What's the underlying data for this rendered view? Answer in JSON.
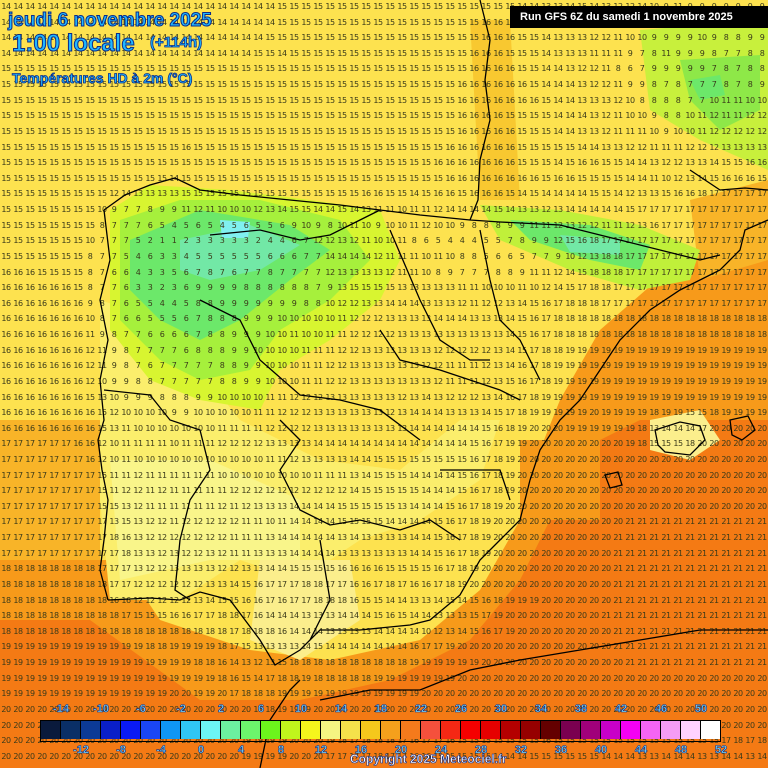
{
  "header": {
    "date": "jeudi 6 novembre 2025",
    "time": "1:00 locale",
    "lead": "(+114h)",
    "variable": "Températures HD à 2m (°C)",
    "run": "Run GFS 6Z du samedi 1 novembre 2025"
  },
  "footer": {
    "copyright": "Copyright 2025 Meteociel.fr"
  },
  "legend": {
    "top_labels": [
      "-14",
      "-10",
      "-6",
      "-2",
      "2",
      "6",
      "10",
      "14",
      "18",
      "22",
      "26",
      "30",
      "34",
      "38",
      "42",
      "46",
      "50"
    ],
    "bottom_labels": [
      "-12",
      "-8",
      "-4",
      "0",
      "4",
      "8",
      "12",
      "16",
      "20",
      "24",
      "28",
      "32",
      "36",
      "40",
      "44",
      "48",
      "52"
    ],
    "colors": [
      "#0a1a3c",
      "#0a2f66",
      "#0c3a96",
      "#0a1fc8",
      "#0a1af5",
      "#1a46f5",
      "#0f96f5",
      "#30c6f5",
      "#6cf5f5",
      "#6cf0a0",
      "#6cf56c",
      "#6cf51c",
      "#c0f51c",
      "#f5f51c",
      "#f5f582",
      "#f5e14b",
      "#f5c81c",
      "#f5a01c",
      "#f57a1c",
      "#f5503c",
      "#f52814",
      "#f50000",
      "#e60000",
      "#b40000",
      "#960000",
      "#640000",
      "#7a0050",
      "#a0007a",
      "#c800c8",
      "#f500f5",
      "#f564f5",
      "#f59cf5",
      "#ffd2ff",
      "#ffffff"
    ]
  },
  "map": {
    "units": "°C",
    "grid_cols": 64,
    "grid_rows": 49,
    "rows": [
      "14 14 14 14 14 14 14 14 14 14 14 14 14 14 14 14 14 14 14 14 14 14 14 15 15 15 15 15 15 15 15 15 15 15 15 15 15 15 15 15 15 15 15 14 14 13 13 14 15 14 13 12 12 14 10 9 11 9 9 9 9 9 9 9",
      "14 14 14 14 14 14 14 14 14 14 14 14 14 14 14 14 14 14 14 14 14 14 14 15 15 15 15 15 15 15 15 15 15 15 15 15 15 15 15 15 16 16 15 15 14 13 12 13 12 11 10 10 10 12 11 11 12 9 9 9 10 9 9 9",
      "14 14 14 14 14 14 14 14 14 14 14 14 14 14 14 14 14 14 14 14 14 14 15 15 15 15 15 15 15 15 15 15 15 15 15 15 15 15 15 15 16 16 16 15 15 14 13 13 13 12 12 11 10 10 9 9 9 9 10 9 8 8 9 9",
      "14 14 14 14 14 14 14 14 14 14 14 14 14 14 14 14 14 14 14 14 14 15 15 14 15 15 15 15 15 15 15 15 15 15 15 15 15 15 15 16 16 16 15 15 15 14 13 13 13 11 11 11 9 7 8 11 9 9 9 8 7 7 8 8",
      "15 15 15 15 15 15 15 15 15 15 15 15 15 15 15 15 15 15 15 15 15 15 15 15 15 15 15 15 15 15 15 15 15 15 15 15 15 15 15 16 16 16 16 15 15 14 14 13 12 12 11 8 6 7 9 9 9 9 9 7 8 7 8 8",
      "15 15 15 15 15 15 15 15 15 15 15 15 15 15 15 15 15 15 15 15 15 15 15 15 15 15 15 15 15 15 15 15 15 15 15 15 15 15 16 16 16 16 16 16 15 14 14 14 13 12 12 11 9 9 8 7 8 7 7 7 8 7 8 9",
      "15 15 15 15 15 15 15 15 15 15 15 15 15 15 15 15 15 15 15 15 15 15 15 15 15 15 15 15 15 15 15 15 15 15 15 15 15 15 16 16 16 16 16 16 16 15 14 14 13 13 13 12 10 8 8 8 8 7 7 10 11 11 10 10",
      "15 15 15 15 15 15 15 15 15 15 15 15 15 15 15 15 15 15 15 15 15 15 15 15 15 15 15 15 15 15 15 15 15 15 15 15 15 15 16 16 16 16 15 15 15 15 14 14 14 13 12 11 10 10 9 8 8 10 11 12 11 11 12 12",
      "15 15 15 15 15 15 15 15 15 15 15 15 15 15 15 15 15 15 15 15 15 15 15 15 15 15 15 15 15 15 15 15 15 15 15 15 15 15 16 16 16 16 16 15 15 15 14 14 13 13 12 11 11 11 10 9 10 10 11 12 12 12 12 12",
      "15 15 15 15 15 15 15 15 15 15 15 15 15 15 15 16 15 15 15 15 15 15 15 15 15 15 15 15 15 15 15 15 15 15 15 15 15 16 16 16 16 16 16 15 15 15 15 15 14 14 13 13 12 12 11 11 11 12 12 12 13 13 13 13",
      "15 15 15 15 15 15 15 15 15 15 15 15 15 15 15 15 15 15 15 15 15 15 15 15 15 15 15 15 15 15 15 15 15 15 15 15 16 16 16 16 16 16 16 15 15 15 14 15 16 16 15 15 14 14 13 12 12 13 13 14 15 15 16 16",
      "15 15 15 15 15 15 15 15 15 15 15 15 15 15 14 15 15 15 15 15 15 15 15 15 15 15 15 15 15 15 15 15 15 15 15 15 15 16 16 16 16 16 16 16 16 15 16 16 15 15 15 15 14 14 11 10 12 13 14 15 16 16 16 15",
      "15 15 15 15 15 15 15 15 15 12 14 13 13 13 13 15 15 15 15 15 15 15 15 15 15 15 15 15 15 15 16 16 15 15 14 15 16 16 15 16 16 16 15 14 15 14 14 14 14 15 15 14 12 13 13 15 16 16 18 17 17 17 17 17",
      "15 15 15 15 15 15 15 15 10 9 7 7 8 9 9 11 12 11 10 10 10 12 13 14 15 15 14 14 15 14 13 11 11 10 11 11 12 14 14 14 14 15 14 13 13 12 13 14 14 14 14 14 15 17 17 17 17 17 17 17 17 17 17 17",
      "15 15 15 15 15 15 15 15 8 7 7 7 6 5 4 5 6 5 4 5 6 5 5 6 9 10 9 8 10 11 10 9 10 10 11 12 10 10 9 8 8 8 9 9 11 11 12 13 12 12 11 11 12 13 16 17 17 17 17 17 17 17 17 17",
      "15 15 15 15 15 15 15 10 7 7 7 5 2 1 1 2 3 3 3 3 3 2 4 4 6 7 12 12 13 12 11 10 10 11 8 6 5 4 4 4 5 5 7 8 9 9 12 15 16 18 17 17 17 17 17 17 17 17 17 17 17 17 17 17",
      "15 15 15 15 15 15 15 8 7 7 5 4 6 3 3 4 5 5 5 5 5 5 6 6 6 7 7 14 14 14 14 12 11 11 11 10 11 10 8 8 5 6 6 5 7 7 9 10 12 13 18 18 17 17 17 17 17 17 17 17 17 17 17 17",
      "16 16 16 15 15 15 15 8 7 6 6 4 3 3 5 6 7 8 7 6 7 7 8 7 7 7 7 12 13 13 13 13 12 11 11 10 8 9 7 7 7 8 8 9 11 11 12 14 15 18 18 18 17 17 17 17 17 17 17 17 17 17 17 17",
      "16 16 16 16 16 16 15 8 7 7 6 3 3 2 3 6 9 9 9 9 8 8 8 8 8 8 7 9 13 15 15 15 15 13 13 13 13 13 11 11 10 10 10 11 10 12 14 15 17 18 18 17 17 17 17 17 17 17 17 17 17 17 17 17",
      "16 16 16 16 16 16 16 9 8 7 6 5 5 4 4 5 8 8 9 9 9 9 9 9 9 8 8 10 12 12 13 13 14 14 14 13 13 13 12 11 12 12 13 14 15 16 17 18 18 18 17 17 17 17 17 17 17 17 17 17 17 17 17 17",
      "16 16 16 16 16 16 16 10 8 7 6 6 5 5 5 6 7 8 8 8 9 9 9 10 10 10 10 10 11 12 12 12 13 13 13 13 14 14 14 13 13 13 14 15 16 17 18 18 18 18 18 18 18 18 18 18 18 18 18 18 18 18 18 18",
      "16 16 16 16 16 16 16 11 9 8 7 7 6 6 6 6 7 8 8 9 9 9 10 10 11 10 10 11 11 12 12 12 12 13 13 13 13 13 13 13 13 13 14 15 16 17 18 18 18 18 18 18 18 18 18 18 18 18 18 18 18 18 18 18",
      "16 16 16 16 16 16 16 12 11 9 8 7 7 7 7 6 8 8 8 9 9 10 10 10 10 11 11 11 12 12 13 13 13 13 13 13 12 12 12 12 12 13 14 15 17 18 18 19 19 19 19 19 19 19 19 19 19 19 19 19 19 19 19 19",
      "16 16 16 16 16 16 16 12 11 9 8 7 6 7 7 7 7 7 8 8 9 9 10 10 10 11 11 12 12 13 13 13 13 13 13 12 12 11 11 11 12 13 14 16 17 18 19 19 19 19 19 19 19 19 19 19 19 19 19 19 19 19 19 19",
      "16 16 16 16 16 16 16 12 10 9 9 8 8 7 7 7 7 7 8 8 9 9 10 10 10 11 11 12 12 13 13 13 13 13 13 13 12 11 11 11 12 13 15 16 17 18 19 19 19 19 19 19 19 19 19 19 19 19 19 19 19 19 19 19",
      "16 16 16 16 16 16 16 15 13 10 9 9 9 8 8 8 9 9 10 10 10 10 11 11 12 12 12 13 13 13 13 13 13 12 13 14 13 12 12 12 13 14 16 17 18 19 19 19 19 19 19 19 19 19 19 19 19 19 19 19 19 19 19 19",
      "16 16 16 16 16 16 16 16 15 12 10 10 10 10 9 9 10 10 10 10 10 11 11 12 12 12 13 13 13 13 13 13 12 13 14 14 14 13 13 13 14 15 17 18 19 19 19 19 19 20 19 19 19 19 18 19 19 15 15 18 19 19 19 19",
      "16 16 16 16 16 16 16 16 15 13 11 10 10 10 10 10 10 10 11 11 11 11 12 12 12 12 13 13 13 13 13 13 13 13 14 14 14 14 14 14 15 16 18 19 20 20 20 19 19 19 19 19 19 18 13 14 14 14 17 20 20 20 20 20",
      "17 17 17 17 17 17 16 16 12 10 11 11 11 11 10 11 11 11 12 12 12 12 13 13 13 13 14 14 14 14 14 14 14 14 14 14 14 14 14 15 16 17 19 19 20 20 20 20 20 20 20 20 19 18 15 15 15 18 20 20 20 20 20 20",
      "17 17 17 17 17 17 17 16 12 10 11 10 10 10 10 10 10 10 10 10 10 10 11 11 12 13 13 13 13 14 14 15 15 15 15 15 15 15 15 16 17 18 19 20 20 20 20 20 20 20 20 20 20 20 20 20 20 20 20 20 20 20 20 20",
      "17 17 17 17 17 17 17 17 15 11 11 12 11 11 11 11 11 11 10 10 10 10 10 10 10 10 11 11 11 13 14 15 15 15 14 14 14 14 15 16 17 18 19 20 20 20 20 20 20 20 20 20 20 20 20 20 20 20 20 20 20 20 20 20",
      "17 17 17 17 17 17 17 17 15 11 12 12 11 12 11 11 11 11 11 12 12 12 12 12 12 12 12 12 12 14 15 15 15 15 15 14 14 14 15 16 17 18 19 20 20 20 20 20 20 20 20 20 20 20 20 20 20 20 20 20 20 20 20 20",
      "17 17 17 17 17 17 17 17 15 15 13 12 11 11 11 11 11 11 12 11 12 13 13 13 14 14 14 14 15 15 15 15 15 13 14 14 14 15 16 17 18 19 20 20 20 20 20 20 20 20 20 20 20 20 20 20 20 20 20 20 20 20 20 20",
      "17 17 17 17 17 17 17 17 17 13 15 13 12 12 11 12 12 12 12 12 11 11 10 11 14 14 14 14 15 15 15 15 14 14 14 14 15 16 17 18 19 20 20 20 20 20 20 20 20 20 20 20 21 21 21 21 21 21 21 21 21 21 21 21",
      "17 17 17 17 17 17 17 17 17 18 16 13 12 12 12 12 12 12 12 11 11 11 13 14 14 14 14 14 13 14 13 13 13 13 14 14 15 16 17 18 19 20 20 20 20 20 20 20 20 20 20 21 21 21 21 21 21 21 21 21 21 21 21 21",
      "17 17 17 17 17 17 17 17 17 17 18 13 13 12 13 12 12 13 12 11 11 13 13 13 14 14 14 14 13 13 13 13 13 13 14 14 15 16 17 18 19 20 20 20 20 20 20 20 20 20 20 21 21 21 21 21 21 21 21 21 21 21 21 21",
      "18 18 18 18 18 18 18 18 17 17 17 13 12 12 13 13 13 13 12 12 13 13 14 14 15 15 15 15 16 16 16 16 15 15 15 15 16 17 18 19 20 20 20 20 20 20 20 20 20 20 20 21 21 21 21 21 21 21 21 21 21 21 21 21",
      "18 18 18 18 18 18 18 18 18 17 17 12 12 12 12 12 12 13 13 14 15 16 17 17 17 18 18 17 17 16 16 17 18 17 16 16 17 18 19 20 20 20 20 20 20 20 20 20 20 20 20 21 21 21 21 21 21 21 21 21 21 21 21 21",
      "18 18 18 18 18 18 18 18 18 16 16 12 12 12 12 12 13 14 15 15 16 16 17 16 17 17 18 18 18 16 15 15 14 14 13 13 14 15 14 15 16 18 19 19 19 20 20 20 20 20 20 21 21 21 21 21 21 21 21 21 21 21 21 21",
      "18 18 18 18 18 18 18 18 18 18 17 15 15 15 16 16 17 17 18 18 17 16 14 14 14 13 13 13 14 14 14 15 16 15 14 14 13 13 13 15 17 19 20 20 20 20 20 20 20 20 21 21 21 21 21 21 21 21 21 21 21 21 21 21",
      "18 18 18 18 18 18 18 18 18 18 18 18 18 18 18 18 18 18 18 17 18 18 18 16 14 14 14 13 13 13 13 14 14 14 14 10 12 13 14 15 16 17 19 20 20 20 20 20 20 20 20 21 21 21 21 21 21 21 21 21 21 21 21 21",
      "19 19 19 19 19 19 19 19 19 19 19 19 18 18 19 19 19 19 18 17 15 13 13 13 13 14 15 14 14 14 14 14 14 14 16 17 17 19 20 20 20 20 20 20 20 20 20 20 20 20 20 21 21 21 21 21 21 21 21 21 21 21 21 21",
      "19 19 19 19 19 19 19 19 19 19 19 19 19 19 19 19 18 18 16 14 13 12 13 15 18 18 18 18 18 18 18 18 18 18 19 19 19 19 19 19 20 20 20 20 20 20 20 20 20 20 20 20 21 21 21 21 21 21 21 21 21 21 21 21",
      "19 19 19 19 19 19 19 19 19 19 19 19 19 19 19 19 19 19 18 16 15 14 17 18 18 19 18 18 18 18 18 19 19 19 19 19 19 19 20 20 20 20 20 20 20 20 20 20 20 20 20 20 20 20 20 20 20 20 20 20 20 20 20 20",
      "19 19 19 19 19 19 19 19 19 19 19 19 19 19 20 20 19 19 20 17 18 18 18 19 19 19 19 19 19 19 19 19 19 19 19 20 20 20 20 20 20 20 20 20 20 20 20 20 20 20 20 20 20 20 20 20 20 20 20 20 20 20 20 20",
      "20 20 20 20 20 20 20 20 20 20 20 20 20 20 20 20 20 20 20 20 20 18 18 19 19 19 20 20 20 20 20 20 20 20 20 20 20 20 20 20 20 20 20 20 20 20 20 20 20 20 20 20 20 20 20 20 20 20 20 20 20 20 20 20",
      "20 20 20 20 20 20 20 20 20 20 20 20 20 20 20 20 20 20 20 20 20 18 16 18 18 19 20 20 20 20 20 20 20 20 20 20 20 20 20 20 20 20 20 20 20 20 20 20 20 20 20 20 20 20 20 20 20 20 20 20 20 20 20 20",
      "20 20 20 20 20 20 20 20 20 20 20 20 20 20 20 20 20 20 20 20 19 19 19 19 20 20 20 19 18 17 18 18 18 17 16 17 17 16 15 15 15 15 15 15 15 16 15 15 15 15 15 15 15 15 15 15 15 15 15 15 17 18 17 18",
      "20 20 20 20 20 20 20 20 20 20 20 20 20 20 20 20 20 20 20 20 19 19 19 19 20 20 20 17 17 17 17 18 17 17 16 16 15 15 15 15 15 14 14 14 15 15 15 15 15 15 14 14 14 13 13 14 14 14 13 13 14 14 13 14"
    ]
  }
}
